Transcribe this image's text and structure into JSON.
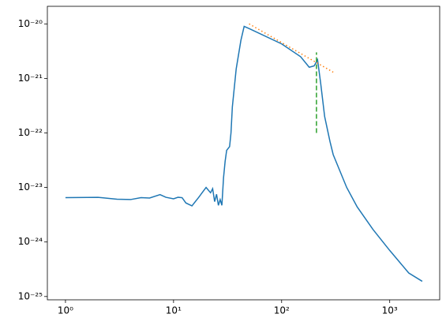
{
  "chart_data": {
    "type": "line",
    "xscale": "log",
    "yscale": "log",
    "xlim": [
      0.68,
      2900
    ],
    "ylim": [
      8.7e-26,
      2.1e-20
    ],
    "xticks": [
      {
        "value": 1,
        "label": "10⁰"
      },
      {
        "value": 10,
        "label": "10¹"
      },
      {
        "value": 100,
        "label": "10²"
      },
      {
        "value": 1000,
        "label": "10³"
      }
    ],
    "yticks": [
      {
        "value": 1e-25,
        "label": "10⁻²⁵"
      },
      {
        "value": 1e-24,
        "label": "10⁻²⁴"
      },
      {
        "value": 1e-23,
        "label": "10⁻²³"
      },
      {
        "value": 1e-22,
        "label": "10⁻²²"
      },
      {
        "value": 1e-21,
        "label": "10⁻²¹"
      },
      {
        "value": 1e-20,
        "label": "10⁻²⁰"
      }
    ],
    "grid": false,
    "series": [
      {
        "color": "#1f77b4",
        "dash": "solid",
        "x": [
          1,
          2,
          3,
          4,
          5,
          6,
          7.5,
          8.5,
          10,
          11,
          12,
          13,
          14.8,
          17,
          20,
          22,
          23,
          24,
          25,
          26,
          27,
          28,
          29,
          30,
          31,
          33,
          34,
          35,
          38,
          42,
          45,
          50,
          100,
          150,
          180,
          200,
          215,
          230,
          250,
          280,
          300,
          400,
          500,
          700,
          1000,
          1500,
          2000
        ],
        "values": [
          6.5e-24,
          6.6e-24,
          6.1e-24,
          6e-24,
          6.5e-24,
          6.4e-24,
          7.4e-24,
          6.6e-24,
          6.2e-24,
          6.6e-24,
          6.5e-24,
          5.2e-24,
          4.6e-24,
          6.5e-24,
          1e-23,
          8e-24,
          9.5e-24,
          5.5e-24,
          7.5e-24,
          4.7e-24,
          6e-24,
          4.7e-24,
          1.5e-23,
          3e-23,
          4.8e-23,
          5.6e-23,
          1e-22,
          3e-22,
          1.5e-21,
          5e-21,
          9e-21,
          8.2e-21,
          4.3e-21,
          2.5e-21,
          1.6e-21,
          1.7e-21,
          2.2e-21,
          8e-22,
          2e-22,
          7e-23,
          4e-23,
          1e-23,
          4.4e-24,
          1.7e-24,
          7e-25,
          2.7e-25,
          1.9e-25
        ]
      },
      {
        "color": "#ff7f0e",
        "dash": "dotted",
        "x": [
          50,
          300
        ],
        "values": [
          1e-20,
          1.3e-21
        ]
      },
      {
        "color": "#2ca02c",
        "dash": "dashed",
        "x": [
          210,
          210
        ],
        "values": [
          1e-22,
          3e-21
        ]
      }
    ]
  }
}
